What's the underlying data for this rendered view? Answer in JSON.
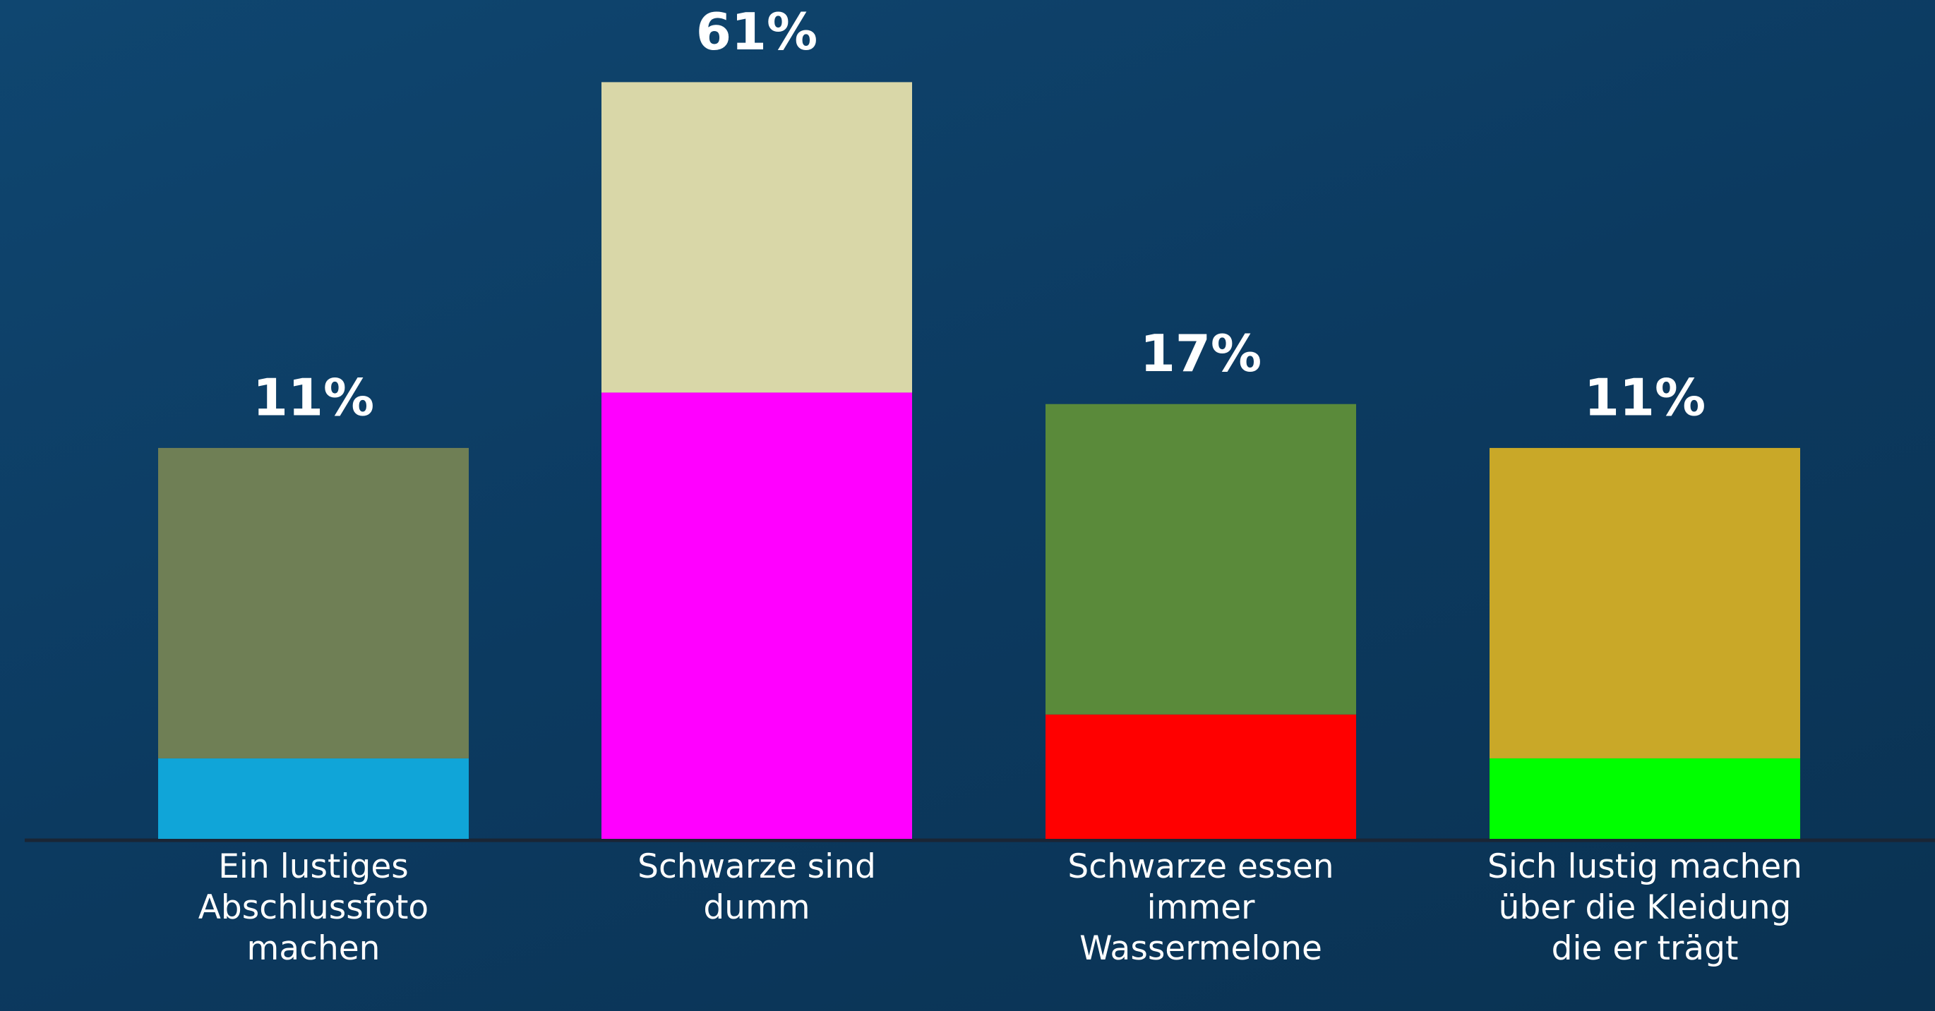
{
  "chart_data": {
    "type": "bar",
    "categories": [
      "Ein lustiges Abschlussfoto machen",
      "Schwarze sind dumm",
      "Schwarze essen immer Wassermelone",
      "Sich lustig machen über die Kleidung die er trägt"
    ],
    "values": [
      11,
      61,
      17,
      11
    ],
    "value_labels": [
      "11%",
      "61%",
      "17%",
      "11%"
    ],
    "colors": [
      "#10a5d8",
      "#ff00ff",
      "#ff0000",
      "#00ff00"
    ]
  }
}
